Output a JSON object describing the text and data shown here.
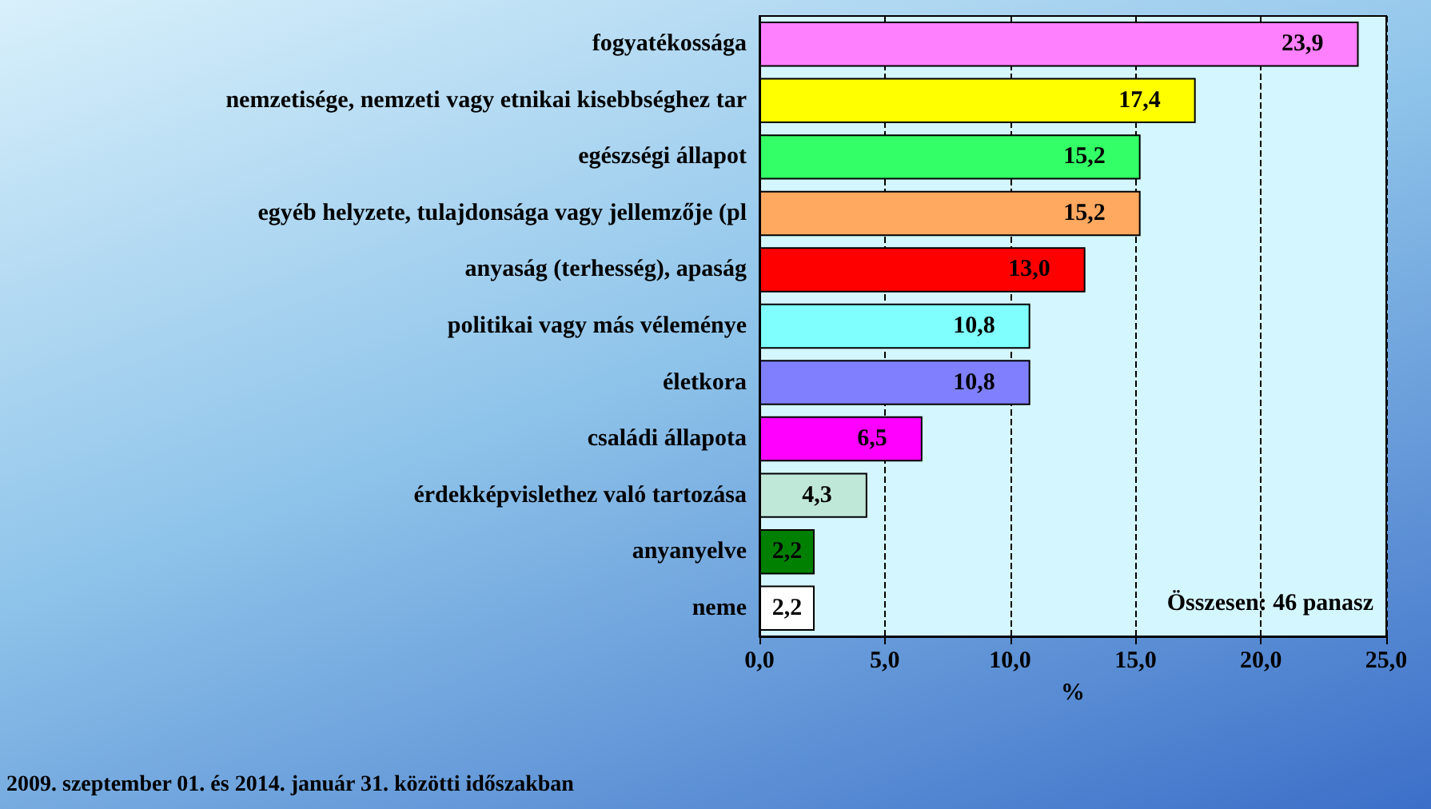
{
  "chart_data": {
    "type": "bar",
    "orientation": "horizontal",
    "xlabel": "%",
    "categories": [
      "fogyatékossága",
      "nemzetisége, nemzeti vagy etnikai kisebbséghez tar",
      "egészségi állapot",
      "egyéb helyzete, tulajdonsága vagy jellemzője (pl",
      "anyaság (terhesség), apaság",
      "politikai vagy más véleménye",
      "életkora",
      "családi állapota",
      "érdekképvislethez való tartozása",
      "anyanyelve",
      "neme"
    ],
    "values": [
      23.9,
      17.4,
      15.2,
      15.2,
      13.0,
      10.8,
      10.8,
      6.5,
      4.3,
      2.2,
      2.2
    ],
    "value_labels": [
      "23,9",
      "17,4",
      "15,2",
      "15,2",
      "13,0",
      "10,8",
      "10,8",
      "6,5",
      "4,3",
      "2,2",
      "2,2"
    ],
    "colors": [
      "#ff80ff",
      "#ffff00",
      "#33ff66",
      "#ffa860",
      "#ff0000",
      "#80ffff",
      "#8080ff",
      "#ff00ff",
      "#c0e8d8",
      "#008000",
      "#ffffff"
    ],
    "xlim": [
      0,
      25
    ],
    "xticks": [
      {
        "value": 0,
        "label": "0,0"
      },
      {
        "value": 5,
        "label": "5,0"
      },
      {
        "value": 10,
        "label": "10,0"
      },
      {
        "value": 15,
        "label": "15,0"
      },
      {
        "value": 20,
        "label": "20,0"
      },
      {
        "value": 25,
        "label": "25,0"
      }
    ],
    "grid": "x",
    "annotations": [
      "Összesen: 46 panasz",
      "2009. szeptember 01. és 2014. január 31. közötti időszakban"
    ]
  }
}
